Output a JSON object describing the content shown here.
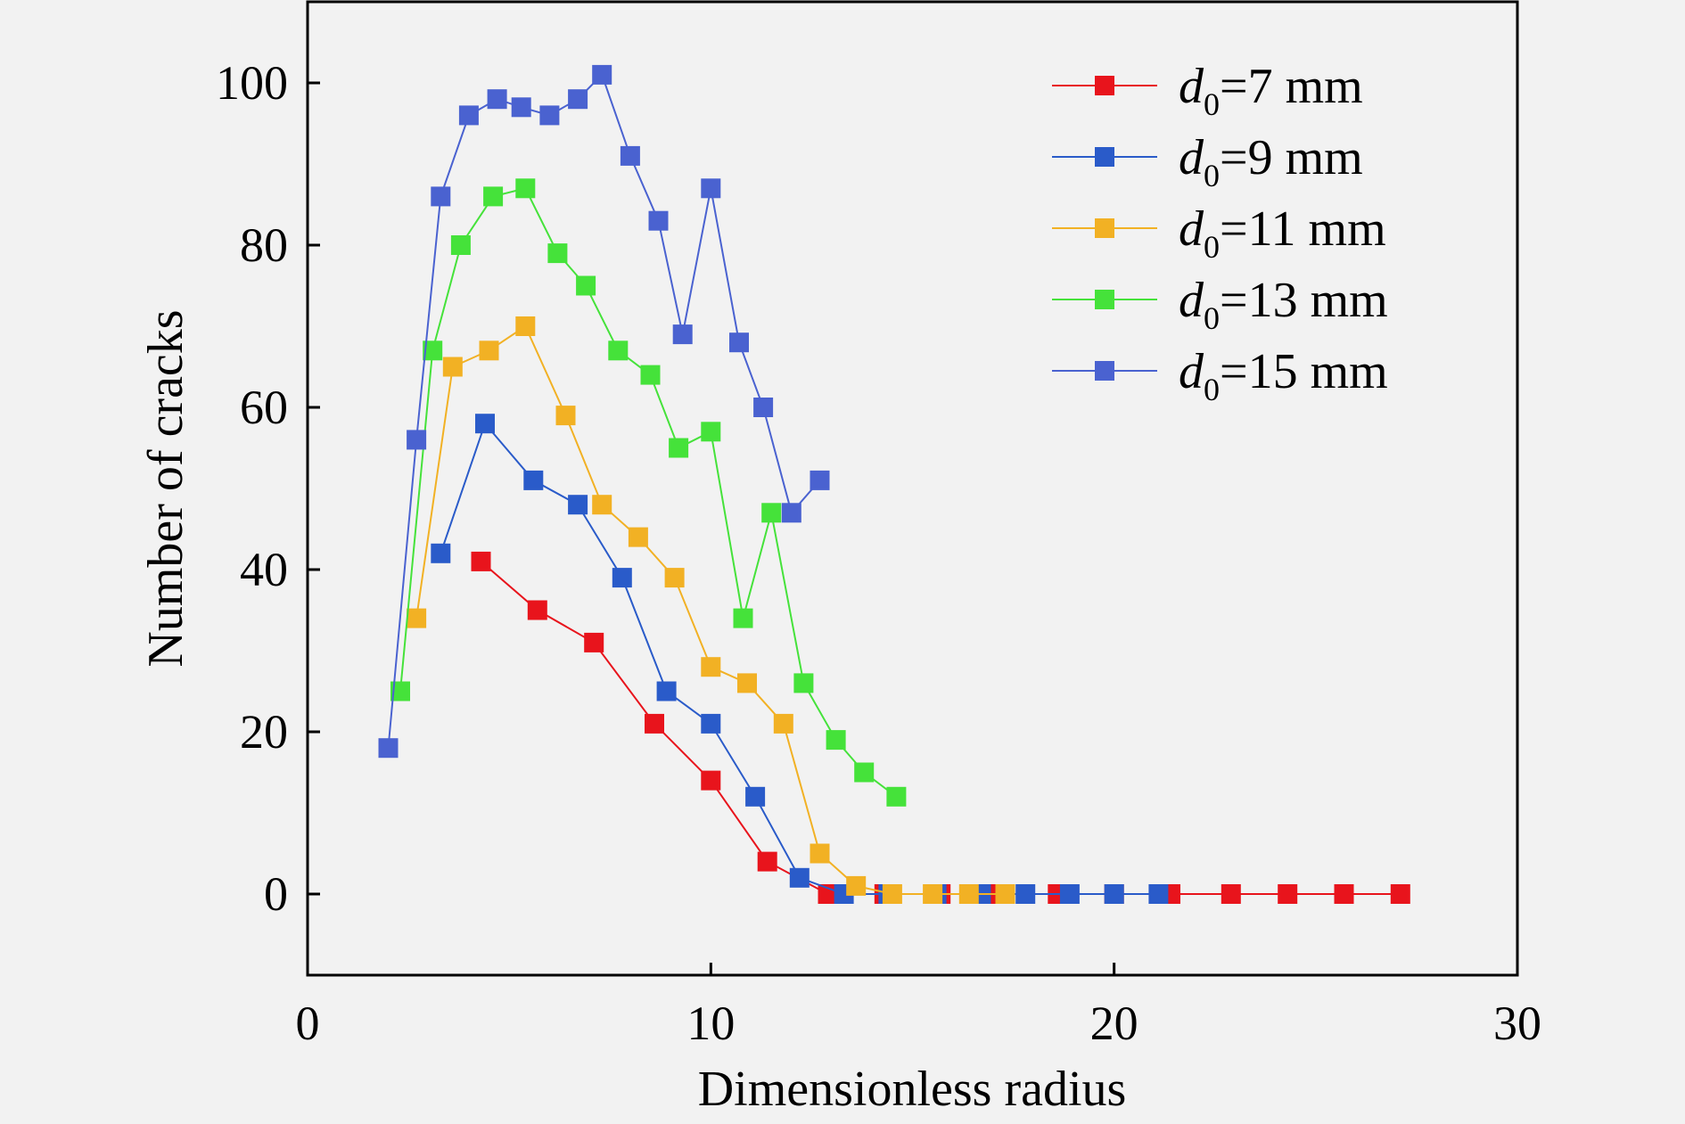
{
  "chart_data": {
    "type": "line",
    "xlabel": "Dimensionless radius",
    "ylabel": "Number of cracks",
    "xlim": [
      0,
      30
    ],
    "ylim": [
      -10,
      110
    ],
    "xticks": [
      "0",
      "10",
      "20",
      "30"
    ],
    "yticks": [
      "0",
      "20",
      "40",
      "60",
      "80",
      "100"
    ],
    "grid": false,
    "legend": "top-right",
    "series": [
      {
        "name": "d0=7 mm",
        "label_main": "d",
        "label_sub": "0",
        "label_rest": "=7 mm",
        "color": "#e8141c",
        "x": [
          4.3,
          5.7,
          7.1,
          8.6,
          10.0,
          11.4,
          12.9,
          14.3,
          15.7,
          17.1,
          18.6,
          20.0,
          21.4,
          22.9,
          24.3,
          25.7,
          27.1
        ],
        "y": [
          41,
          35,
          31,
          21,
          14,
          4,
          0,
          0,
          0,
          0,
          0,
          0,
          0,
          0,
          0,
          0,
          0
        ]
      },
      {
        "name": "d0=9 mm",
        "label_main": "d",
        "label_sub": "0",
        "label_rest": "=9 mm",
        "color": "#2a5bc9",
        "x": [
          3.3,
          4.4,
          5.6,
          6.7,
          7.8,
          8.9,
          10.0,
          11.1,
          12.2,
          13.3,
          14.4,
          15.6,
          16.7,
          17.8,
          18.9,
          20.0,
          21.1
        ],
        "y": [
          42,
          58,
          51,
          48,
          39,
          25,
          21,
          12,
          2,
          0,
          0,
          0,
          0,
          0,
          0,
          0,
          0
        ]
      },
      {
        "name": "d0=11 mm",
        "label_main": "d",
        "label_sub": "0",
        "label_rest": "=11 mm",
        "color": "#f2b124",
        "x": [
          2.7,
          3.6,
          4.5,
          5.4,
          6.4,
          7.3,
          8.2,
          9.1,
          10.0,
          10.9,
          11.8,
          12.7,
          13.6,
          14.5,
          15.5,
          16.4,
          17.3
        ],
        "y": [
          34,
          65,
          67,
          70,
          59,
          48,
          44,
          39,
          28,
          26,
          21,
          5,
          1,
          0,
          0,
          0,
          0
        ]
      },
      {
        "name": "d0=13 mm",
        "label_main": "d",
        "label_sub": "0",
        "label_rest": "=13 mm",
        "color": "#45e23a",
        "x": [
          2.3,
          3.1,
          3.8,
          4.6,
          5.4,
          6.2,
          6.9,
          7.7,
          8.5,
          9.2,
          10.0,
          10.8,
          11.5,
          12.3,
          13.1,
          13.8,
          14.6
        ],
        "y": [
          25,
          67,
          80,
          86,
          87,
          79,
          75,
          67,
          64,
          55,
          57,
          34,
          47,
          26,
          19,
          15,
          12
        ]
      },
      {
        "name": "d0=15 mm",
        "label_main": "d",
        "label_sub": "0",
        "label_rest": "=15 mm",
        "color": "#4a62d0",
        "x": [
          2.0,
          2.7,
          3.3,
          4.0,
          4.7,
          5.3,
          6.0,
          6.7,
          7.3,
          8.0,
          8.7,
          9.3,
          10.0,
          10.7,
          11.3,
          12.0,
          12.7
        ],
        "y": [
          18,
          56,
          86,
          96,
          98,
          97,
          96,
          98,
          101,
          91,
          83,
          69,
          87,
          68,
          60,
          47,
          51
        ]
      }
    ]
  }
}
